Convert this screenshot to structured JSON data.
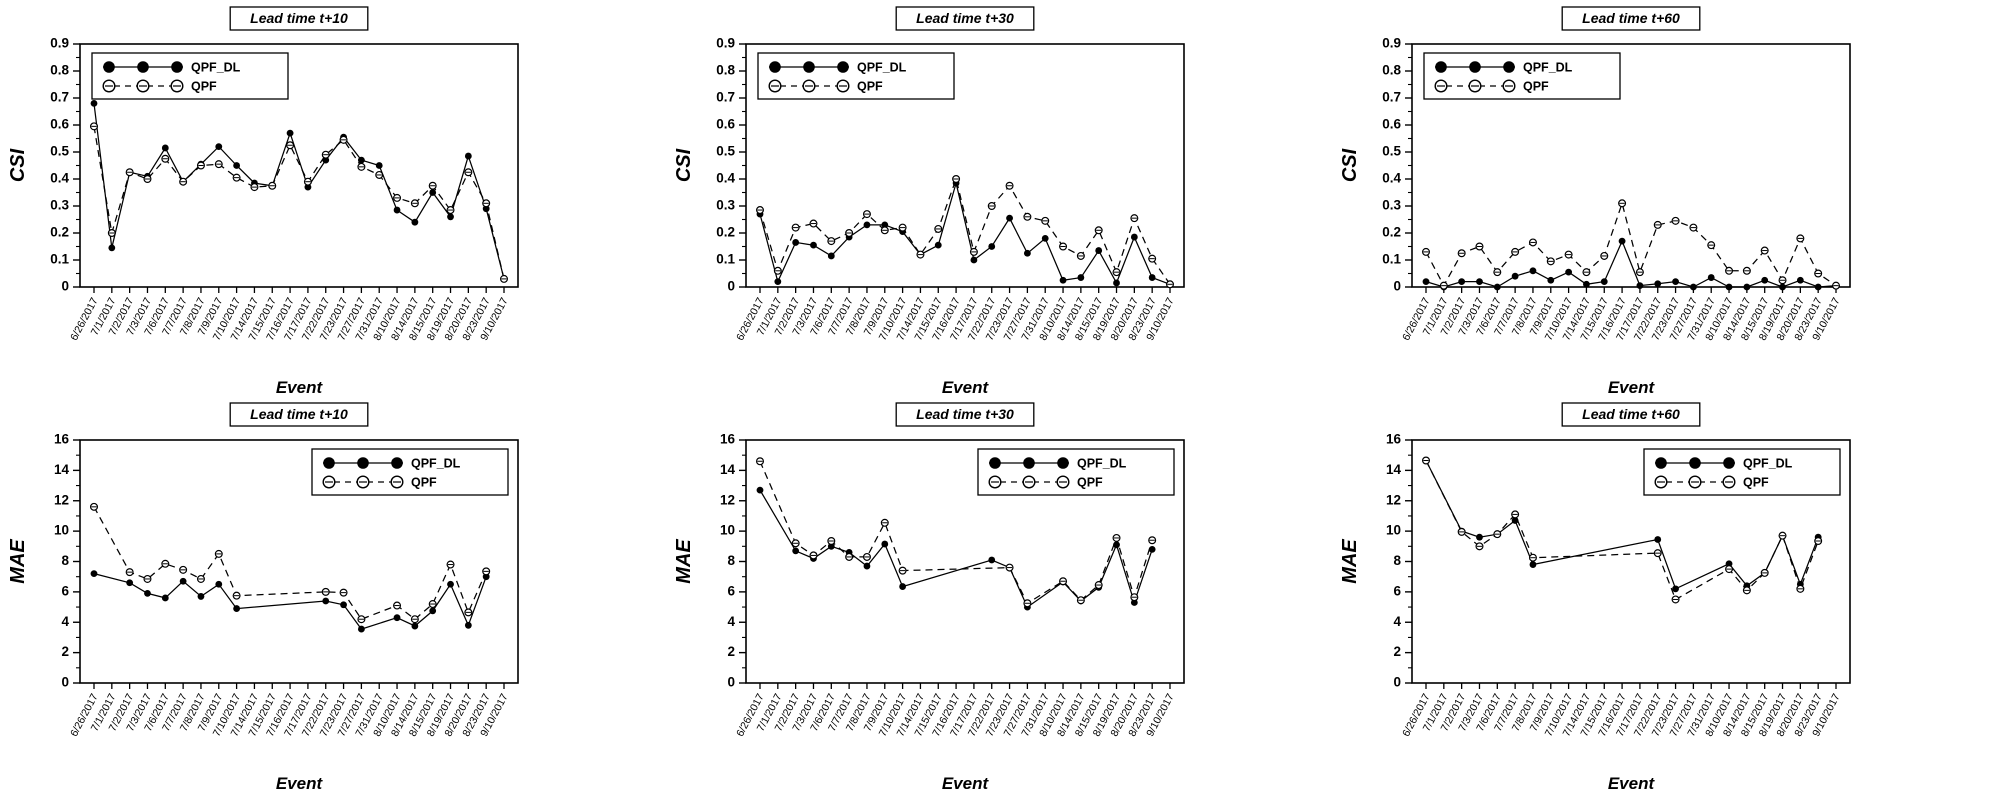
{
  "page": {
    "background": "#ffffff",
    "ink": "#000000"
  },
  "legend": {
    "series1_label": "QPF_DL",
    "series2_label": "QPF"
  },
  "axis_titles": {
    "row1_y": "CSI",
    "row2_y": "MAE",
    "x": "Event"
  },
  "chart_data": [
    {
      "type": "line",
      "title": "Lead time t+10",
      "xlabel": "Event",
      "ylabel": "CSI",
      "ylim": [
        0,
        0.9
      ],
      "ytick_major": 0.1,
      "ytick_minor": 0.05,
      "grid": false,
      "legend_position": "top-left",
      "categories": [
        "6/26/2017",
        "7/1/2017",
        "7/2/2017",
        "7/3/2017",
        "7/6/2017",
        "7/7/2017",
        "7/8/2017",
        "7/9/2017",
        "7/10/2017",
        "7/14/2017",
        "7/15/2017",
        "7/16/2017",
        "7/17/2017",
        "7/22/2017",
        "7/23/2017",
        "7/27/2017",
        "7/31/2017",
        "8/10/2017",
        "8/14/2017",
        "8/15/2017",
        "8/19/2017",
        "8/20/2017",
        "8/23/2017",
        "9/10/2017"
      ],
      "series": [
        {
          "name": "QPF_DL",
          "line": "solid",
          "marker": "filled-circle",
          "values": [
            0.68,
            0.145,
            0.425,
            0.41,
            0.515,
            0.39,
            0.455,
            0.52,
            0.45,
            0.385,
            0.375,
            0.57,
            0.37,
            0.47,
            0.555,
            0.47,
            0.45,
            0.285,
            0.24,
            0.35,
            0.26,
            0.485,
            0.29,
            0.03
          ]
        },
        {
          "name": "QPF",
          "line": "dashed",
          "marker": "open-circle",
          "values": [
            0.595,
            0.2,
            0.425,
            0.4,
            0.475,
            0.39,
            0.45,
            0.455,
            0.405,
            0.37,
            0.375,
            0.525,
            0.39,
            0.49,
            0.545,
            0.445,
            0.415,
            0.33,
            0.31,
            0.375,
            0.285,
            0.425,
            0.31,
            0.03
          ]
        }
      ]
    },
    {
      "type": "line",
      "title": "Lead time t+30",
      "xlabel": "Event",
      "ylabel": "CSI",
      "ylim": [
        0,
        0.9
      ],
      "ytick_major": 0.1,
      "ytick_minor": 0.05,
      "grid": false,
      "legend_position": "top-left",
      "categories": [
        "6/26/2017",
        "7/1/2017",
        "7/2/2017",
        "7/3/2017",
        "7/6/2017",
        "7/7/2017",
        "7/8/2017",
        "7/9/2017",
        "7/10/2017",
        "7/14/2017",
        "7/15/2017",
        "7/16/2017",
        "7/17/2017",
        "7/22/2017",
        "7/23/2017",
        "7/27/2017",
        "7/31/2017",
        "8/10/2017",
        "8/14/2017",
        "8/15/2017",
        "8/19/2017",
        "8/20/2017",
        "8/23/2017",
        "9/10/2017"
      ],
      "series": [
        {
          "name": "QPF_DL",
          "line": "solid",
          "marker": "filled-circle",
          "values": [
            0.27,
            0.02,
            0.165,
            0.155,
            0.115,
            0.185,
            0.23,
            0.23,
            0.205,
            0.12,
            0.155,
            0.385,
            0.1,
            0.15,
            0.255,
            0.125,
            0.18,
            0.025,
            0.035,
            0.135,
            0.015,
            0.185,
            0.035,
            0.01
          ]
        },
        {
          "name": "QPF",
          "line": "dashed",
          "marker": "open-circle",
          "values": [
            0.285,
            0.06,
            0.22,
            0.235,
            0.17,
            0.2,
            0.27,
            0.21,
            0.22,
            0.12,
            0.215,
            0.4,
            0.13,
            0.3,
            0.375,
            0.26,
            0.245,
            0.15,
            0.115,
            0.21,
            0.055,
            0.255,
            0.105,
            0.01
          ]
        }
      ]
    },
    {
      "type": "line",
      "title": "Lead time t+60",
      "xlabel": "Event",
      "ylabel": "CSI",
      "ylim": [
        0,
        0.9
      ],
      "ytick_major": 0.1,
      "ytick_minor": 0.05,
      "grid": false,
      "legend_position": "top-left",
      "categories": [
        "6/26/2017",
        "7/1/2017",
        "7/2/2017",
        "7/3/2017",
        "7/6/2017",
        "7/7/2017",
        "7/8/2017",
        "7/9/2017",
        "7/10/2017",
        "7/14/2017",
        "7/15/2017",
        "7/16/2017",
        "7/17/2017",
        "7/22/2017",
        "7/23/2017",
        "7/27/2017",
        "7/31/2017",
        "8/10/2017",
        "8/14/2017",
        "8/15/2017",
        "8/19/2017",
        "8/20/2017",
        "8/23/2017",
        "9/10/2017"
      ],
      "series": [
        {
          "name": "QPF_DL",
          "line": "solid",
          "marker": "filled-circle",
          "values": [
            0.02,
            0,
            0.02,
            0.02,
            0,
            0.04,
            0.06,
            0.025,
            0.055,
            0.01,
            0.02,
            0.17,
            0.005,
            0.012,
            0.02,
            0,
            0.035,
            0,
            0,
            0.025,
            0,
            0.025,
            0,
            0.005
          ]
        },
        {
          "name": "QPF",
          "line": "dashed",
          "marker": "open-circle",
          "values": [
            0.13,
            0.005,
            0.125,
            0.15,
            0.055,
            0.13,
            0.165,
            0.095,
            0.12,
            0.055,
            0.115,
            0.31,
            0.055,
            0.23,
            0.245,
            0.22,
            0.155,
            0.06,
            0.06,
            0.135,
            0.025,
            0.18,
            0.05,
            0.005
          ]
        }
      ]
    },
    {
      "type": "line",
      "title": "Lead time t+10",
      "xlabel": "Event",
      "ylabel": "MAE",
      "ylim": [
        0,
        16
      ],
      "ytick_major": 2,
      "ytick_minor": 1,
      "grid": false,
      "legend_position": "top-right",
      "categories": [
        "6/26/2017",
        "7/1/2017",
        "7/2/2017",
        "7/3/2017",
        "7/6/2017",
        "7/7/2017",
        "7/8/2017",
        "7/9/2017",
        "7/10/2017",
        "7/14/2017",
        "7/15/2017",
        "7/16/2017",
        "7/17/2017",
        "7/22/2017",
        "7/23/2017",
        "7/27/2017",
        "7/31/2017",
        "8/10/2017",
        "8/14/2017",
        "8/15/2017",
        "8/19/2017",
        "8/20/2017",
        "8/23/2017",
        "9/10/2017"
      ],
      "series": [
        {
          "name": "QPF_DL",
          "line": "solid",
          "marker": "filled-circle",
          "values": [
            7.2,
            null,
            6.6,
            5.9,
            5.6,
            6.7,
            5.7,
            6.5,
            4.9,
            null,
            null,
            null,
            null,
            5.4,
            5.15,
            3.55,
            null,
            4.3,
            3.75,
            4.75,
            6.5,
            3.8,
            7.0,
            null
          ]
        },
        {
          "name": "QPF",
          "line": "dashed",
          "marker": "open-circle",
          "values": [
            11.6,
            null,
            7.3,
            6.85,
            7.85,
            7.45,
            6.85,
            8.5,
            5.75,
            null,
            null,
            null,
            null,
            6.0,
            5.95,
            4.2,
            null,
            5.1,
            4.2,
            5.2,
            7.8,
            4.65,
            7.35,
            null
          ]
        }
      ]
    },
    {
      "type": "line",
      "title": "Lead time t+30",
      "xlabel": "Event",
      "ylabel": "MAE",
      "ylim": [
        0,
        16
      ],
      "ytick_major": 2,
      "ytick_minor": 1,
      "grid": false,
      "legend_position": "top-right",
      "categories": [
        "6/26/2017",
        "7/1/2017",
        "7/2/2017",
        "7/3/2017",
        "7/6/2017",
        "7/7/2017",
        "7/8/2017",
        "7/9/2017",
        "7/10/2017",
        "7/14/2017",
        "7/15/2017",
        "7/16/2017",
        "7/17/2017",
        "7/22/2017",
        "7/23/2017",
        "7/27/2017",
        "7/31/2017",
        "8/10/2017",
        "8/14/2017",
        "8/15/2017",
        "8/19/2017",
        "8/20/2017",
        "8/23/2017",
        "9/10/2017"
      ],
      "series": [
        {
          "name": "QPF_DL",
          "line": "solid",
          "marker": "filled-circle",
          "values": [
            12.7,
            null,
            8.7,
            8.2,
            9.0,
            8.6,
            7.7,
            9.15,
            6.35,
            null,
            null,
            null,
            null,
            8.1,
            7.6,
            5.0,
            null,
            6.65,
            5.4,
            6.3,
            9.1,
            5.3,
            8.8,
            null
          ]
        },
        {
          "name": "QPF",
          "line": "dashed",
          "marker": "open-circle",
          "values": [
            14.6,
            null,
            9.2,
            8.4,
            9.35,
            8.3,
            8.3,
            10.55,
            7.4,
            null,
            null,
            null,
            null,
            null,
            7.6,
            5.25,
            null,
            6.7,
            5.45,
            6.45,
            9.55,
            5.65,
            9.4,
            null
          ]
        }
      ]
    },
    {
      "type": "line",
      "title": "Lead time t+60",
      "xlabel": "Event",
      "ylabel": "MAE",
      "ylim": [
        0,
        16
      ],
      "ytick_major": 2,
      "ytick_minor": 1,
      "grid": false,
      "legend_position": "top-right",
      "categories": [
        "6/26/2017",
        "7/1/2017",
        "7/2/2017",
        "7/3/2017",
        "7/6/2017",
        "7/7/2017",
        "7/8/2017",
        "7/9/2017",
        "7/10/2017",
        "7/14/2017",
        "7/15/2017",
        "7/16/2017",
        "7/17/2017",
        "7/22/2017",
        "7/23/2017",
        "7/27/2017",
        "7/31/2017",
        "8/10/2017",
        "8/14/2017",
        "8/15/2017",
        "8/19/2017",
        "8/20/2017",
        "8/23/2017",
        "9/10/2017"
      ],
      "series": [
        {
          "name": "QPF_DL",
          "line": "solid",
          "marker": "filled-circle",
          "values": [
            14.65,
            null,
            10.0,
            9.6,
            9.8,
            10.7,
            7.8,
            null,
            null,
            null,
            null,
            null,
            null,
            9.45,
            6.2,
            null,
            null,
            7.85,
            6.4,
            7.25,
            9.7,
            6.5,
            9.6,
            null
          ]
        },
        {
          "name": "QPF",
          "line": "dashed",
          "marker": "open-circle",
          "values": [
            14.65,
            null,
            9.95,
            9.0,
            9.8,
            11.1,
            8.25,
            null,
            null,
            null,
            null,
            null,
            null,
            8.55,
            5.5,
            null,
            null,
            7.5,
            6.1,
            7.25,
            9.7,
            6.2,
            9.35,
            null
          ]
        }
      ]
    }
  ]
}
